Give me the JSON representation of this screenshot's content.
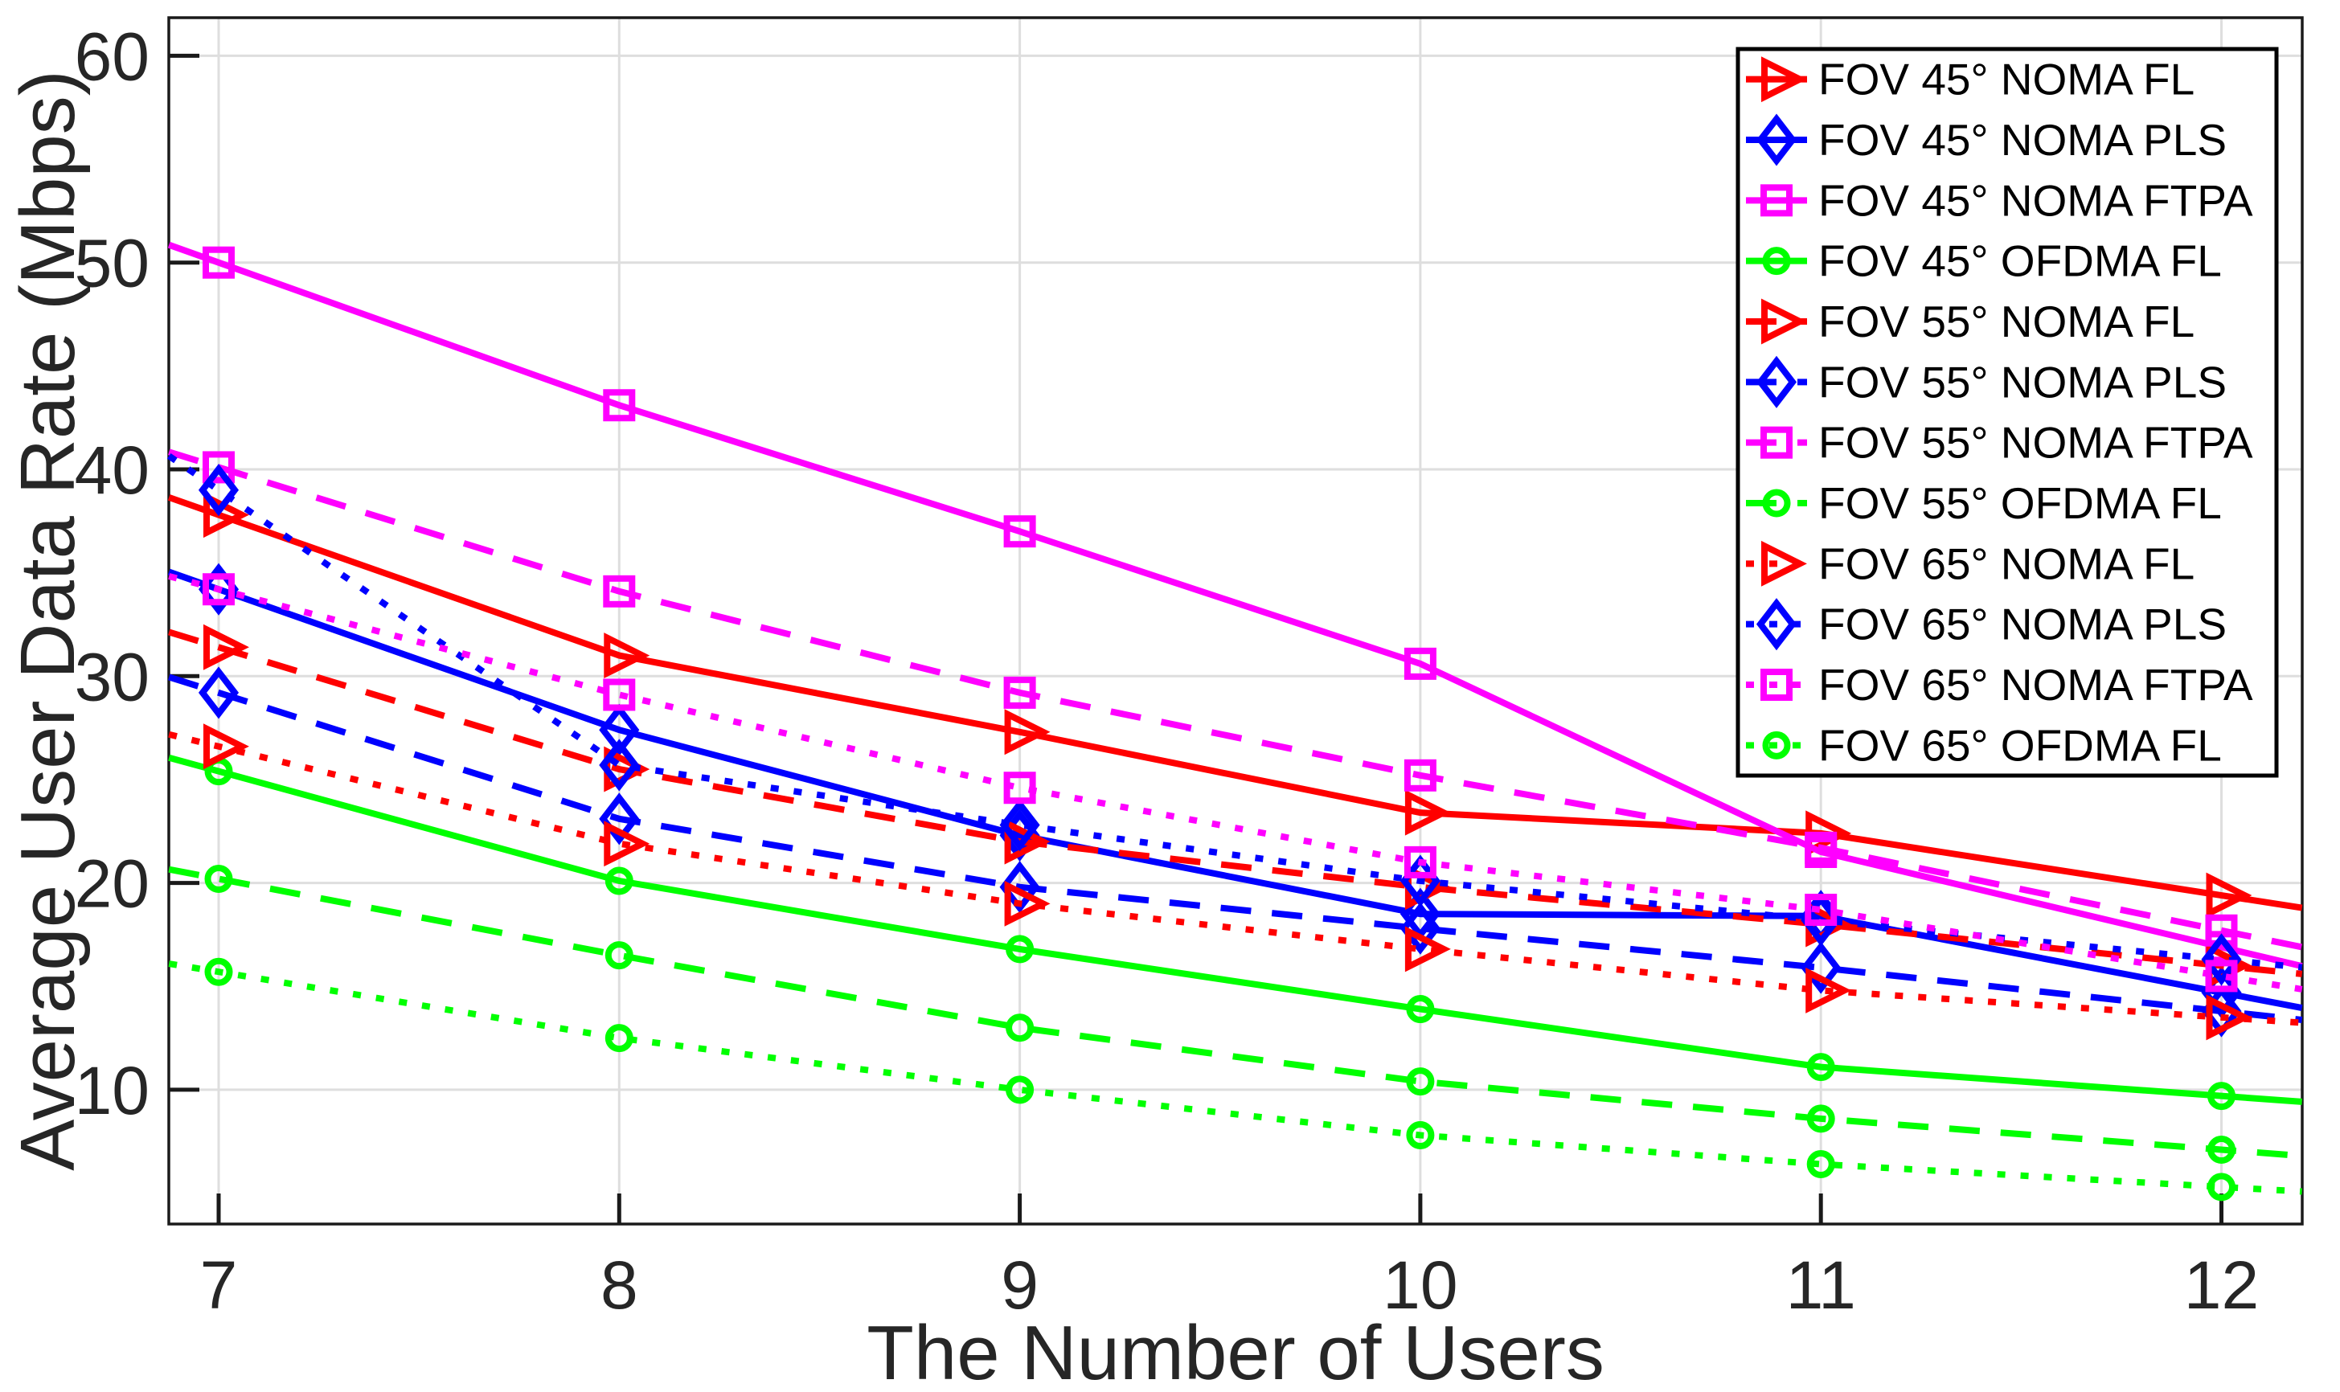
{
  "chart_data": {
    "type": "line",
    "title": "",
    "xlabel": "The Number of Users",
    "ylabel": "Average User Data Rate (Mbps)",
    "x": [
      7,
      8,
      9,
      10,
      11,
      12
    ],
    "xticks": [
      7,
      8,
      9,
      10,
      11,
      12
    ],
    "yticks": [
      10,
      20,
      30,
      40,
      50,
      60
    ],
    "xlim": [
      6.876,
      12.201
    ],
    "ylim": [
      3.47,
      61.92
    ],
    "grid": true,
    "legend_position": "northeast",
    "background_color": "#FFFFFF",
    "gridline_color": "#DEDEDE",
    "axis_color": "#1A1A1A",
    "series": [
      {
        "name": "FOV 45° NOMA FL",
        "color": "#FF0000",
        "line_style": "solid",
        "marker": "triangle-right",
        "values": [
          37.8,
          31.0,
          27.3,
          23.4,
          22.4,
          19.4
        ]
      },
      {
        "name": "FOV 45° NOMA PLS",
        "color": "#0000FF",
        "line_style": "solid",
        "marker": "diamond",
        "values": [
          34.2,
          27.4,
          22.3,
          18.5,
          18.4,
          14.7
        ]
      },
      {
        "name": "FOV 45° NOMA FTPA",
        "color": "#FF00FF",
        "line_style": "solid",
        "marker": "square",
        "values": [
          50.0,
          43.1,
          37.0,
          30.6,
          21.5,
          16.9
        ]
      },
      {
        "name": "FOV 45° OFDMA FL",
        "color": "#00FF00",
        "line_style": "solid",
        "marker": "circle",
        "values": [
          25.4,
          20.1,
          16.8,
          13.9,
          11.1,
          9.7
        ]
      },
      {
        "name": "FOV 55° NOMA FL",
        "color": "#FF0000",
        "line_style": "dashed",
        "marker": "triangle-right",
        "values": [
          31.4,
          25.5,
          22.0,
          19.8,
          18.0,
          16.0
        ]
      },
      {
        "name": "FOV 55° NOMA PLS",
        "color": "#0000FF",
        "line_style": "dashed",
        "marker": "diamond",
        "values": [
          29.2,
          23.1,
          19.8,
          17.8,
          15.9,
          13.8
        ]
      },
      {
        "name": "FOV 55° NOMA FTPA",
        "color": "#FF00FF",
        "line_style": "dashed",
        "marker": "square",
        "values": [
          40.1,
          34.1,
          29.2,
          25.2,
          21.7,
          17.7
        ]
      },
      {
        "name": "FOV 55° OFDMA FL",
        "color": "#00FF00",
        "line_style": "dashed",
        "marker": "circle",
        "values": [
          20.2,
          16.5,
          13.0,
          10.4,
          8.6,
          7.1
        ]
      },
      {
        "name": "FOV 65° NOMA FL",
        "color": "#FF0000",
        "line_style": "dotted",
        "marker": "triangle-right",
        "values": [
          26.6,
          21.9,
          19.0,
          16.8,
          14.8,
          13.5
        ]
      },
      {
        "name": "FOV 65° NOMA PLS",
        "color": "#0000FF",
        "line_style": "dotted",
        "marker": "diamond",
        "values": [
          39.0,
          25.7,
          22.8,
          20.1,
          18.2,
          16.3
        ]
      },
      {
        "name": "FOV 65° NOMA FTPA",
        "color": "#FF00FF",
        "line_style": "dotted",
        "marker": "square",
        "values": [
          34.2,
          29.1,
          24.6,
          21.0,
          18.7,
          15.5
        ]
      },
      {
        "name": "FOV 65° OFDMA FL",
        "color": "#00FF00",
        "line_style": "dotted",
        "marker": "circle",
        "values": [
          15.7,
          12.5,
          10.0,
          7.8,
          6.4,
          5.3
        ]
      }
    ]
  }
}
